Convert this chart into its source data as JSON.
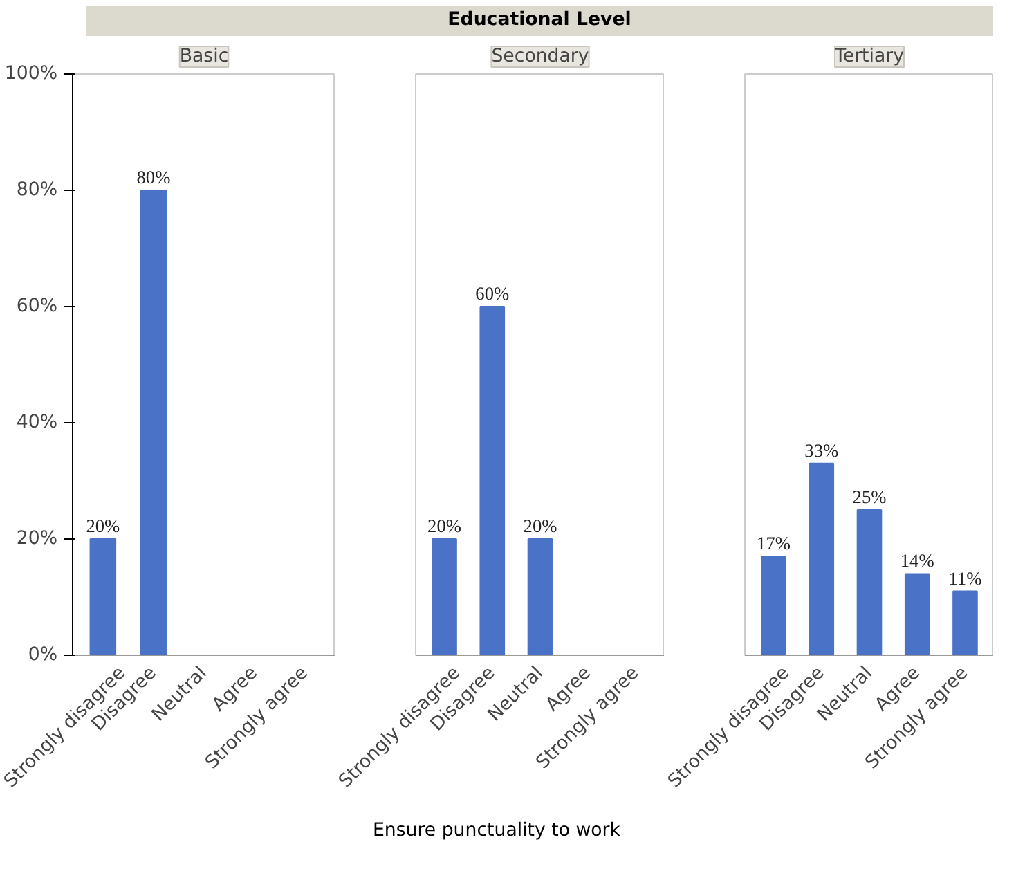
{
  "chart_data": [
    {
      "type": "bar",
      "title": "Basic",
      "annotations": [
        "Educational Level"
      ],
      "categories": [
        "Strongly disagree",
        "Disagree",
        "Neutral",
        "Agree",
        "Strongly agree"
      ],
      "values": [
        20,
        80,
        null,
        null,
        null
      ],
      "value_labels": [
        "20%",
        "80%",
        null,
        null,
        null
      ],
      "color": "#4a72c6",
      "ylim": [
        0,
        100
      ],
      "yticks": [
        {
          "value": 0,
          "label": "0%"
        },
        {
          "value": 20,
          "label": "20%"
        },
        {
          "value": 40,
          "label": "40%"
        },
        {
          "value": 60,
          "label": "60%"
        },
        {
          "value": 80,
          "label": "80%"
        },
        {
          "value": 100,
          "label": "100%"
        }
      ],
      "grid": false
    },
    {
      "type": "bar",
      "title": "Secondary",
      "xlabel": "Ensure punctuality to work",
      "categories": [
        "Strongly disagree",
        "Disagree",
        "Neutral",
        "Agree",
        "Strongly agree"
      ],
      "values": [
        20,
        60,
        20,
        null,
        null
      ],
      "value_labels": [
        "20%",
        "60%",
        "20%",
        null,
        null
      ],
      "color": "#4a72c6",
      "ylim": [
        0,
        100
      ],
      "tick_labels": "x",
      "grid": false
    },
    {
      "type": "bar",
      "title": "Tertiary",
      "categories": [
        "Strongly disagree",
        "Disagree",
        "Neutral",
        "Agree",
        "Strongly agree"
      ],
      "values": [
        17,
        33,
        25,
        14,
        11
      ],
      "value_labels": [
        "17%",
        "33%",
        "25%",
        "14%",
        "11%"
      ],
      "color": "#4a72c6",
      "ylim": [
        0,
        100
      ],
      "tick_labels": "x",
      "grid": false
    }
  ]
}
